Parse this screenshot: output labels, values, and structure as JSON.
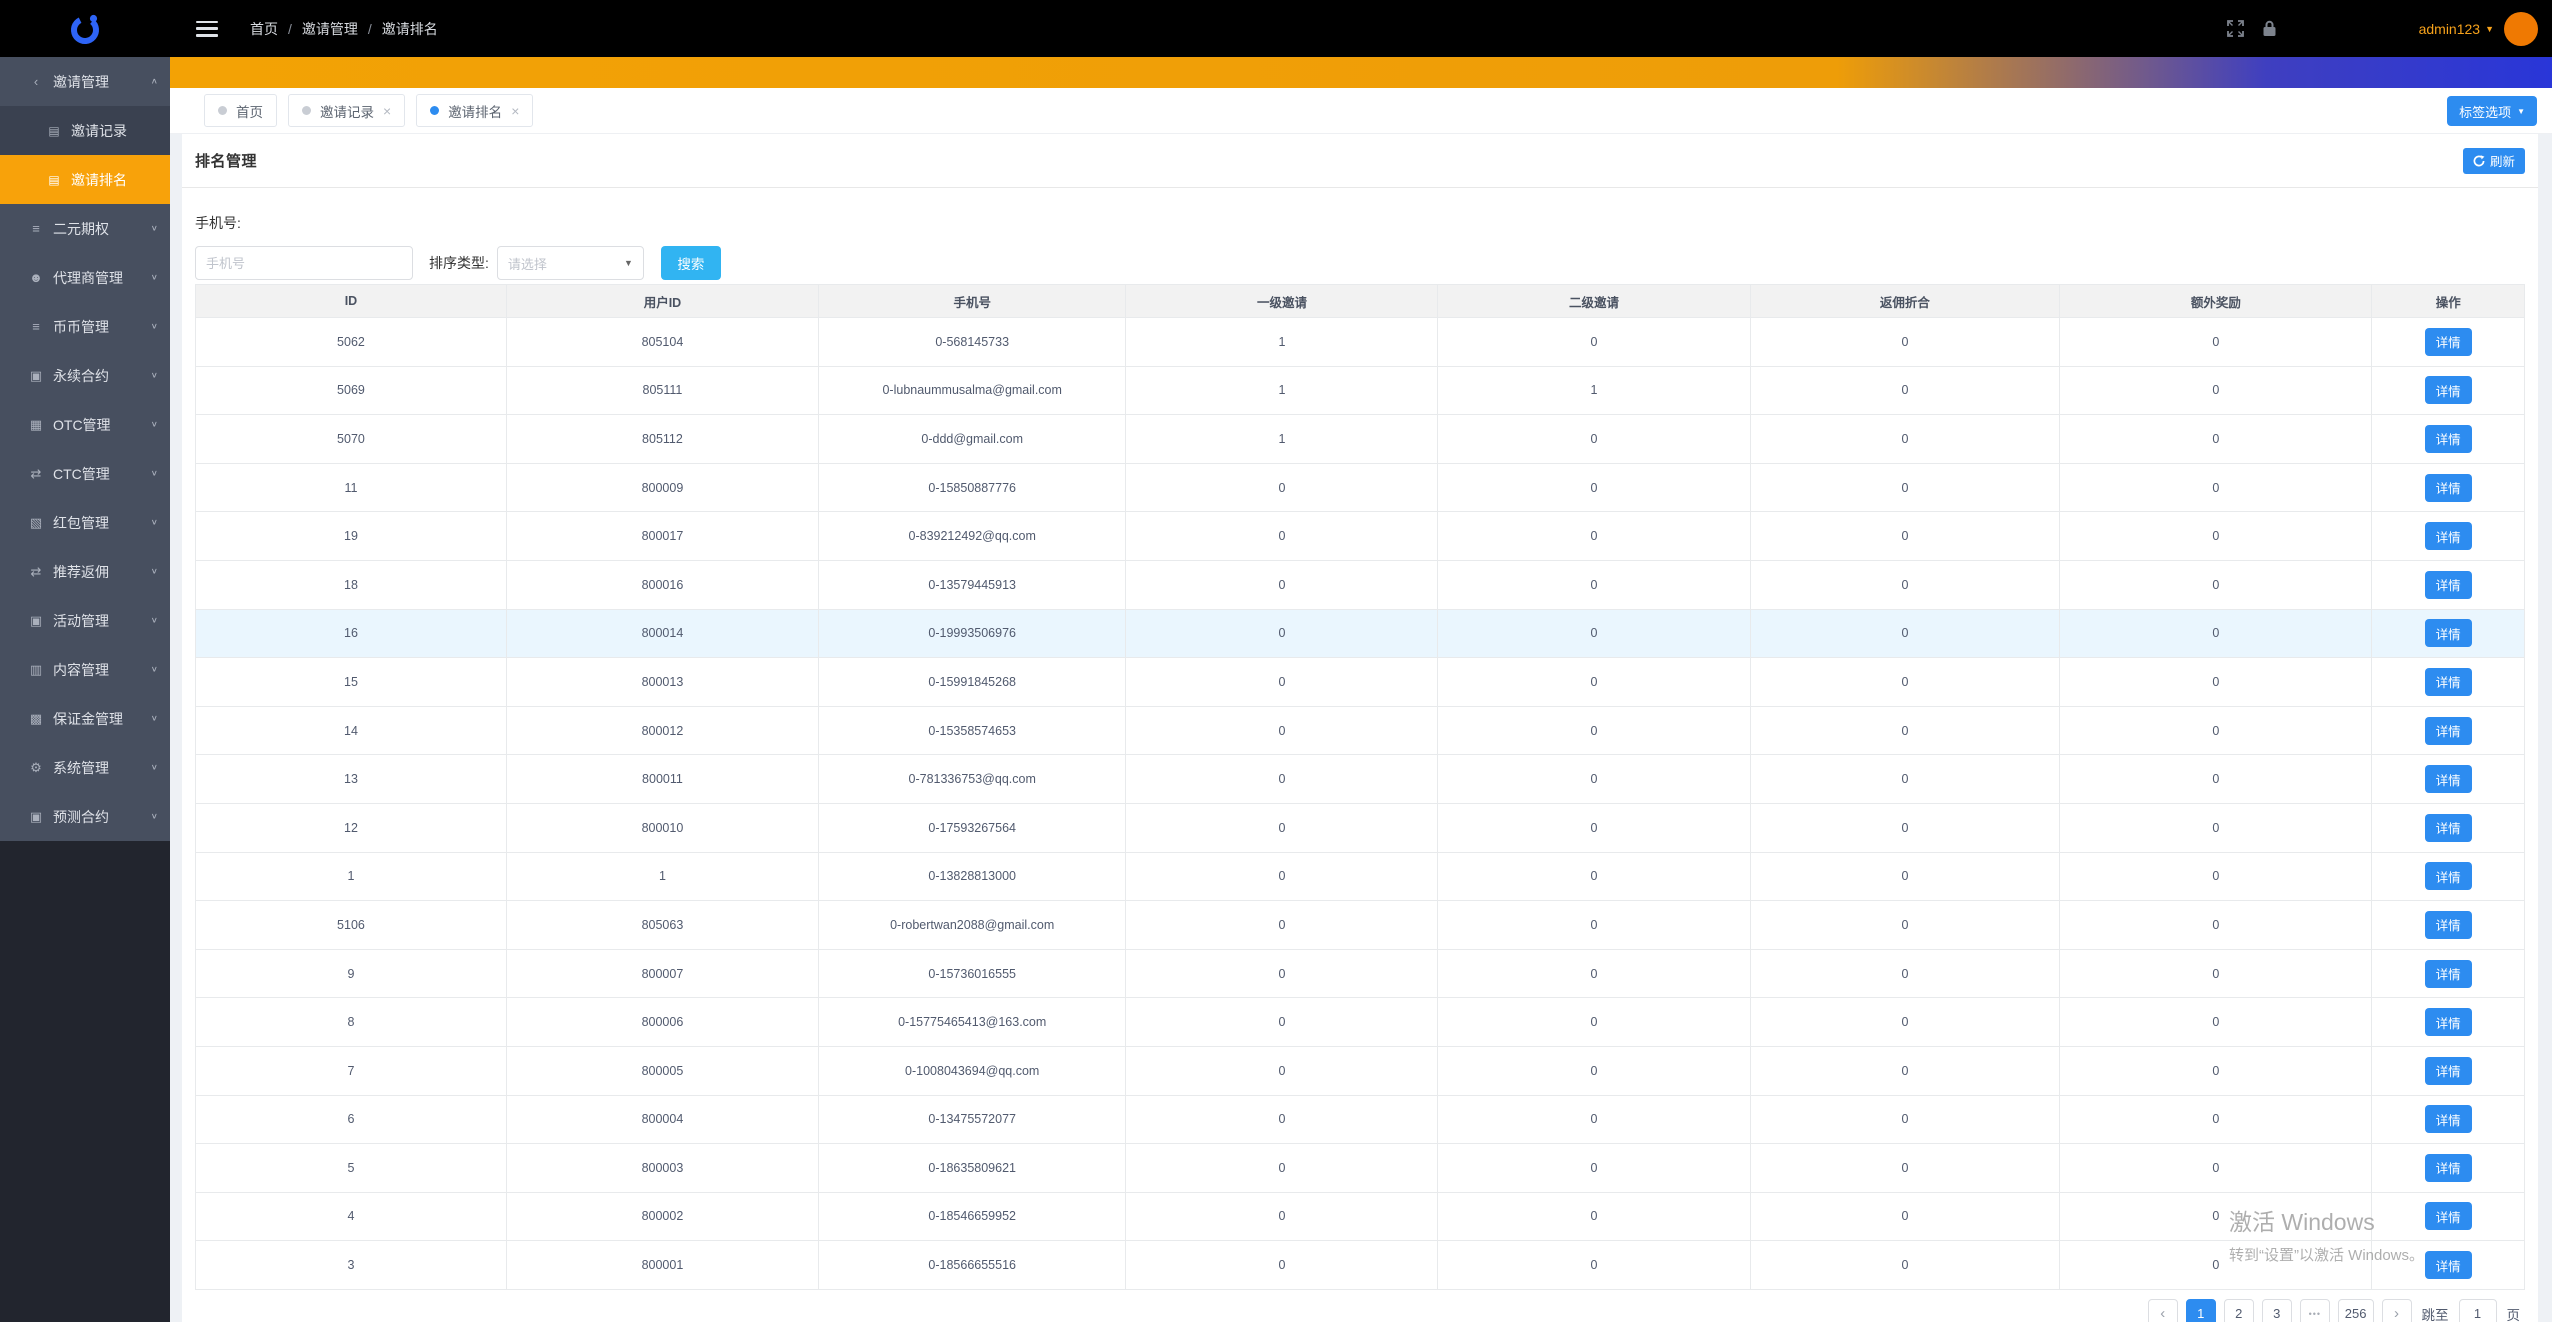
{
  "header": {
    "breadcrumb": [
      "首页",
      "邀请管理",
      "邀请排名"
    ],
    "breadcrumb_separator": "/",
    "username": "admin123"
  },
  "icons": {
    "share": "‹",
    "file": "▤",
    "sliders": "≡",
    "users": "☻",
    "cube": "▣",
    "briefcase": "▦",
    "exchange": "⇄",
    "package": "▧",
    "folder": "▥",
    "money": "▩",
    "gear": "⚙",
    "chevron-up": "∧",
    "chevron-down": "∨",
    "caret-down": "▼",
    "close": "×",
    "prev": "‹",
    "next": "›"
  },
  "colors": {
    "accent_orange": "#f8a20a",
    "primary_blue": "#2d8cf0",
    "search_blue": "#31b4f2",
    "header_black": "#000000",
    "sidebar_gray": "#474f5f",
    "avatar_orange": "#ef7902"
  },
  "sidebar": {
    "items": [
      {
        "key": "invite-manage",
        "label": "邀请管理",
        "icon": "share",
        "type": "parent",
        "arrow": "chevron-up"
      },
      {
        "key": "invite-records",
        "label": "邀请记录",
        "icon": "file",
        "type": "child"
      },
      {
        "key": "invite-ranking",
        "label": "邀请排名",
        "icon": "file",
        "type": "child",
        "active": true
      },
      {
        "key": "binary-options",
        "label": "二元期权",
        "icon": "sliders",
        "type": "parent",
        "arrow": "chevron-down"
      },
      {
        "key": "agent-manage",
        "label": "代理商管理",
        "icon": "users",
        "type": "parent",
        "arrow": "chevron-down"
      },
      {
        "key": "coin-manage",
        "label": "币币管理",
        "icon": "sliders",
        "type": "parent",
        "arrow": "chevron-down"
      },
      {
        "key": "perpetual",
        "label": "永续合约",
        "icon": "cube",
        "type": "parent",
        "arrow": "chevron-down"
      },
      {
        "key": "otc-manage",
        "label": "OTC管理",
        "icon": "briefcase",
        "type": "parent",
        "arrow": "chevron-down"
      },
      {
        "key": "ctc-manage",
        "label": "CTC管理",
        "icon": "exchange",
        "type": "parent",
        "arrow": "chevron-down"
      },
      {
        "key": "redpacket",
        "label": "红包管理",
        "icon": "package",
        "type": "parent",
        "arrow": "chevron-down"
      },
      {
        "key": "referral-rebate",
        "label": "推荐返佣",
        "icon": "exchange",
        "type": "parent",
        "arrow": "chevron-down"
      },
      {
        "key": "activity-manage",
        "label": "活动管理",
        "icon": "cube",
        "type": "parent",
        "arrow": "chevron-down"
      },
      {
        "key": "content-manage",
        "label": "内容管理",
        "icon": "folder",
        "type": "parent",
        "arrow": "chevron-down"
      },
      {
        "key": "margin-manage",
        "label": "保证金管理",
        "icon": "money",
        "type": "parent",
        "arrow": "chevron-down"
      },
      {
        "key": "system-manage",
        "label": "系统管理",
        "icon": "gear",
        "type": "parent",
        "arrow": "chevron-down"
      },
      {
        "key": "predict-contract",
        "label": "预测合约",
        "icon": "cube",
        "type": "parent",
        "arrow": "chevron-down"
      }
    ]
  },
  "tabs": [
    {
      "key": "home",
      "label": "首页",
      "closable": false,
      "active": false
    },
    {
      "key": "invite-records",
      "label": "邀请记录",
      "closable": true,
      "active": false
    },
    {
      "key": "invite-ranking",
      "label": "邀请排名",
      "closable": true,
      "active": true
    }
  ],
  "page": {
    "title": "排名管理",
    "tag_button": "标签选项",
    "refresh_button": "刷新"
  },
  "filters": {
    "phone_label": "手机号:",
    "phone_placeholder": "手机号",
    "phone_value": "",
    "sort_label": "排序类型:",
    "sort_placeholder": "请选择",
    "search_button": "搜索"
  },
  "table": {
    "columns": [
      "ID",
      "用户ID",
      "手机号",
      "一级邀请",
      "二级邀请",
      "返佣折合",
      "额外奖励",
      "操作"
    ],
    "action_label": "详情",
    "rows": [
      {
        "cells": [
          "5062",
          "805104",
          "0-568145733",
          "1",
          "0",
          "0",
          "0"
        ]
      },
      {
        "cells": [
          "5069",
          "805111",
          "0-lubnaummusalma@gmail.com",
          "1",
          "1",
          "0",
          "0"
        ]
      },
      {
        "cells": [
          "5070",
          "805112",
          "0-ddd@gmail.com",
          "1",
          "0",
          "0",
          "0"
        ]
      },
      {
        "cells": [
          "11",
          "800009",
          "0-15850887776",
          "0",
          "0",
          "0",
          "0"
        ]
      },
      {
        "cells": [
          "19",
          "800017",
          "0-839212492@qq.com",
          "0",
          "0",
          "0",
          "0"
        ]
      },
      {
        "cells": [
          "18",
          "800016",
          "0-13579445913",
          "0",
          "0",
          "0",
          "0"
        ]
      },
      {
        "cells": [
          "16",
          "800014",
          "0-19993506976",
          "0",
          "0",
          "0",
          "0"
        ],
        "highlighted": true
      },
      {
        "cells": [
          "15",
          "800013",
          "0-15991845268",
          "0",
          "0",
          "0",
          "0"
        ]
      },
      {
        "cells": [
          "14",
          "800012",
          "0-15358574653",
          "0",
          "0",
          "0",
          "0"
        ]
      },
      {
        "cells": [
          "13",
          "800011",
          "0-781336753@qq.com",
          "0",
          "0",
          "0",
          "0"
        ]
      },
      {
        "cells": [
          "12",
          "800010",
          "0-17593267564",
          "0",
          "0",
          "0",
          "0"
        ]
      },
      {
        "cells": [
          "1",
          "1",
          "0-13828813000",
          "0",
          "0",
          "0",
          "0"
        ]
      },
      {
        "cells": [
          "5106",
          "805063",
          "0-robertwan2088@gmail.com",
          "0",
          "0",
          "0",
          "0"
        ]
      },
      {
        "cells": [
          "9",
          "800007",
          "0-15736016555",
          "0",
          "0",
          "0",
          "0"
        ]
      },
      {
        "cells": [
          "8",
          "800006",
          "0-15775465413@163.com",
          "0",
          "0",
          "0",
          "0"
        ]
      },
      {
        "cells": [
          "7",
          "800005",
          "0-1008043694@qq.com",
          "0",
          "0",
          "0",
          "0"
        ]
      },
      {
        "cells": [
          "6",
          "800004",
          "0-13475572077",
          "0",
          "0",
          "0",
          "0"
        ]
      },
      {
        "cells": [
          "5",
          "800003",
          "0-18635809621",
          "0",
          "0",
          "0",
          "0"
        ]
      },
      {
        "cells": [
          "4",
          "800002",
          "0-18546659952",
          "0",
          "0",
          "0",
          "0"
        ]
      },
      {
        "cells": [
          "3",
          "800001",
          "0-18566655516",
          "0",
          "0",
          "0",
          "0"
        ]
      }
    ]
  },
  "pagination": {
    "pages": [
      "1",
      "2",
      "3",
      "•••",
      "256"
    ],
    "active_page": "1",
    "jump_label": "跳至",
    "jump_value": "1",
    "unit_label": "页"
  },
  "watermark": {
    "title": "激活 Windows",
    "subtitle": "转到“设置”以激活 Windows。"
  }
}
